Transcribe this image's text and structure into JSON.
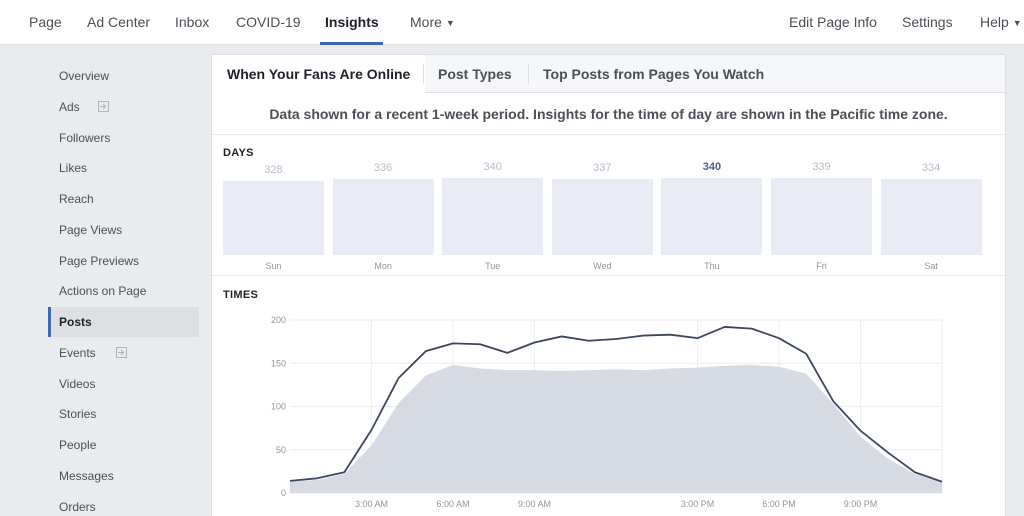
{
  "topnav": {
    "left_items": [
      "Page",
      "Ad Center",
      "Inbox",
      "COVID-19",
      "Insights",
      "More"
    ],
    "active": "Insights",
    "right_items": [
      "Edit Page Info",
      "Settings",
      "Help"
    ]
  },
  "sidebar": {
    "items": [
      {
        "label": "Overview",
        "ext": false
      },
      {
        "label": "Ads",
        "ext": true
      },
      {
        "label": "Followers",
        "ext": false
      },
      {
        "label": "Likes",
        "ext": false
      },
      {
        "label": "Reach",
        "ext": false
      },
      {
        "label": "Page Views",
        "ext": false
      },
      {
        "label": "Page Previews",
        "ext": false
      },
      {
        "label": "Actions on Page",
        "ext": false
      },
      {
        "label": "Posts",
        "ext": false
      },
      {
        "label": "Events",
        "ext": true
      },
      {
        "label": "Videos",
        "ext": false
      },
      {
        "label": "Stories",
        "ext": false
      },
      {
        "label": "People",
        "ext": false
      },
      {
        "label": "Messages",
        "ext": false
      },
      {
        "label": "Orders",
        "ext": false
      }
    ],
    "active": "Posts"
  },
  "tabs": {
    "items": [
      "When Your Fans Are Online",
      "Post Types",
      "Top Posts from Pages You Watch"
    ],
    "active": "When Your Fans Are Online"
  },
  "notice": "Data shown for a recent 1-week period. Insights for the time of day are shown in the Pacific time zone.",
  "days": {
    "label": "DAYS",
    "items": [
      {
        "day": "Sun",
        "value": 328
      },
      {
        "day": "Mon",
        "value": 336
      },
      {
        "day": "Tue",
        "value": 340
      },
      {
        "day": "Wed",
        "value": 337
      },
      {
        "day": "Thu",
        "value": 340
      },
      {
        "day": "Fri",
        "value": 339
      },
      {
        "day": "Sat",
        "value": 334
      }
    ],
    "highlighted": "Thu"
  },
  "colors": {
    "accent": "#4267b2",
    "line": "#3b4660",
    "area": "#d2d6e0",
    "bar": "#e9ecf4"
  },
  "chart_data": {
    "type": "area",
    "title": "TIMES",
    "x_label": "",
    "y_label": "",
    "ylim": [
      0,
      200
    ],
    "yticks": [
      0,
      50,
      100,
      150,
      200
    ],
    "xlim": [
      0,
      24
    ],
    "xticks": [
      {
        "h": 3,
        "label": "3:00 AM"
      },
      {
        "h": 6,
        "label": "6:00 AM"
      },
      {
        "h": 9,
        "label": "9:00 AM"
      },
      {
        "h": 15,
        "label": "3:00 PM"
      },
      {
        "h": 18,
        "label": "6:00 PM"
      },
      {
        "h": 21,
        "label": "9:00 PM"
      }
    ],
    "grid": true,
    "hours": [
      0,
      1,
      2,
      3,
      4,
      5,
      6,
      7,
      8,
      9,
      10,
      11,
      12,
      13,
      14,
      15,
      16,
      17,
      18,
      19,
      20,
      21,
      22,
      23,
      24
    ],
    "series": [
      {
        "kind": "line",
        "values": [
          14,
          17,
          24,
          73,
          133,
          164,
          173,
          172,
          162,
          174,
          181,
          176,
          178,
          182,
          183,
          179,
          192,
          190,
          179,
          161,
          106,
          72,
          47,
          24,
          13
        ]
      },
      {
        "kind": "area",
        "values": [
          13,
          15,
          22,
          55,
          104,
          136,
          148,
          144,
          142,
          142,
          141,
          142,
          143,
          142,
          144,
          145,
          147,
          148,
          146,
          138,
          103,
          65,
          40,
          22,
          12
        ]
      }
    ]
  }
}
